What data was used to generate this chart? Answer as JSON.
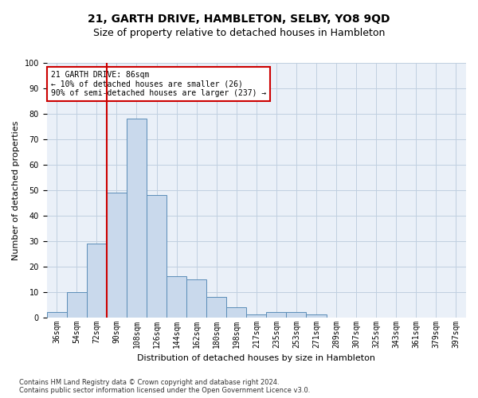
{
  "title": "21, GARTH DRIVE, HAMBLETON, SELBY, YO8 9QD",
  "subtitle": "Size of property relative to detached houses in Hambleton",
  "xlabel": "Distribution of detached houses by size in Hambleton",
  "ylabel": "Number of detached properties",
  "bar_labels": [
    "36sqm",
    "54sqm",
    "72sqm",
    "90sqm",
    "108sqm",
    "126sqm",
    "144sqm",
    "162sqm",
    "180sqm",
    "198sqm",
    "217sqm",
    "235sqm",
    "253sqm",
    "271sqm",
    "289sqm",
    "307sqm",
    "325sqm",
    "343sqm",
    "361sqm",
    "379sqm",
    "397sqm"
  ],
  "bar_values": [
    2,
    10,
    29,
    49,
    78,
    48,
    16,
    15,
    8,
    4,
    1,
    2,
    2,
    1,
    0,
    0,
    0,
    0,
    0,
    0,
    0
  ],
  "bar_color": "#c9d9ec",
  "bar_edge_color": "#5b8db8",
  "grid_color": "#c0cfe0",
  "background_color": "#eaf0f8",
  "vline_x": 2.5,
  "vline_color": "#cc0000",
  "annotation_text": "21 GARTH DRIVE: 86sqm\n← 10% of detached houses are smaller (26)\n90% of semi-detached houses are larger (237) →",
  "annotation_box_color": "#ffffff",
  "annotation_box_edge": "#cc0000",
  "ylim": [
    0,
    100
  ],
  "yticks": [
    0,
    10,
    20,
    30,
    40,
    50,
    60,
    70,
    80,
    90,
    100
  ],
  "footnote1": "Contains HM Land Registry data © Crown copyright and database right 2024.",
  "footnote2": "Contains public sector information licensed under the Open Government Licence v3.0.",
  "title_fontsize": 10,
  "subtitle_fontsize": 9,
  "annot_fontsize": 7,
  "axis_fontsize": 8,
  "tick_fontsize": 7,
  "footnote_fontsize": 6
}
